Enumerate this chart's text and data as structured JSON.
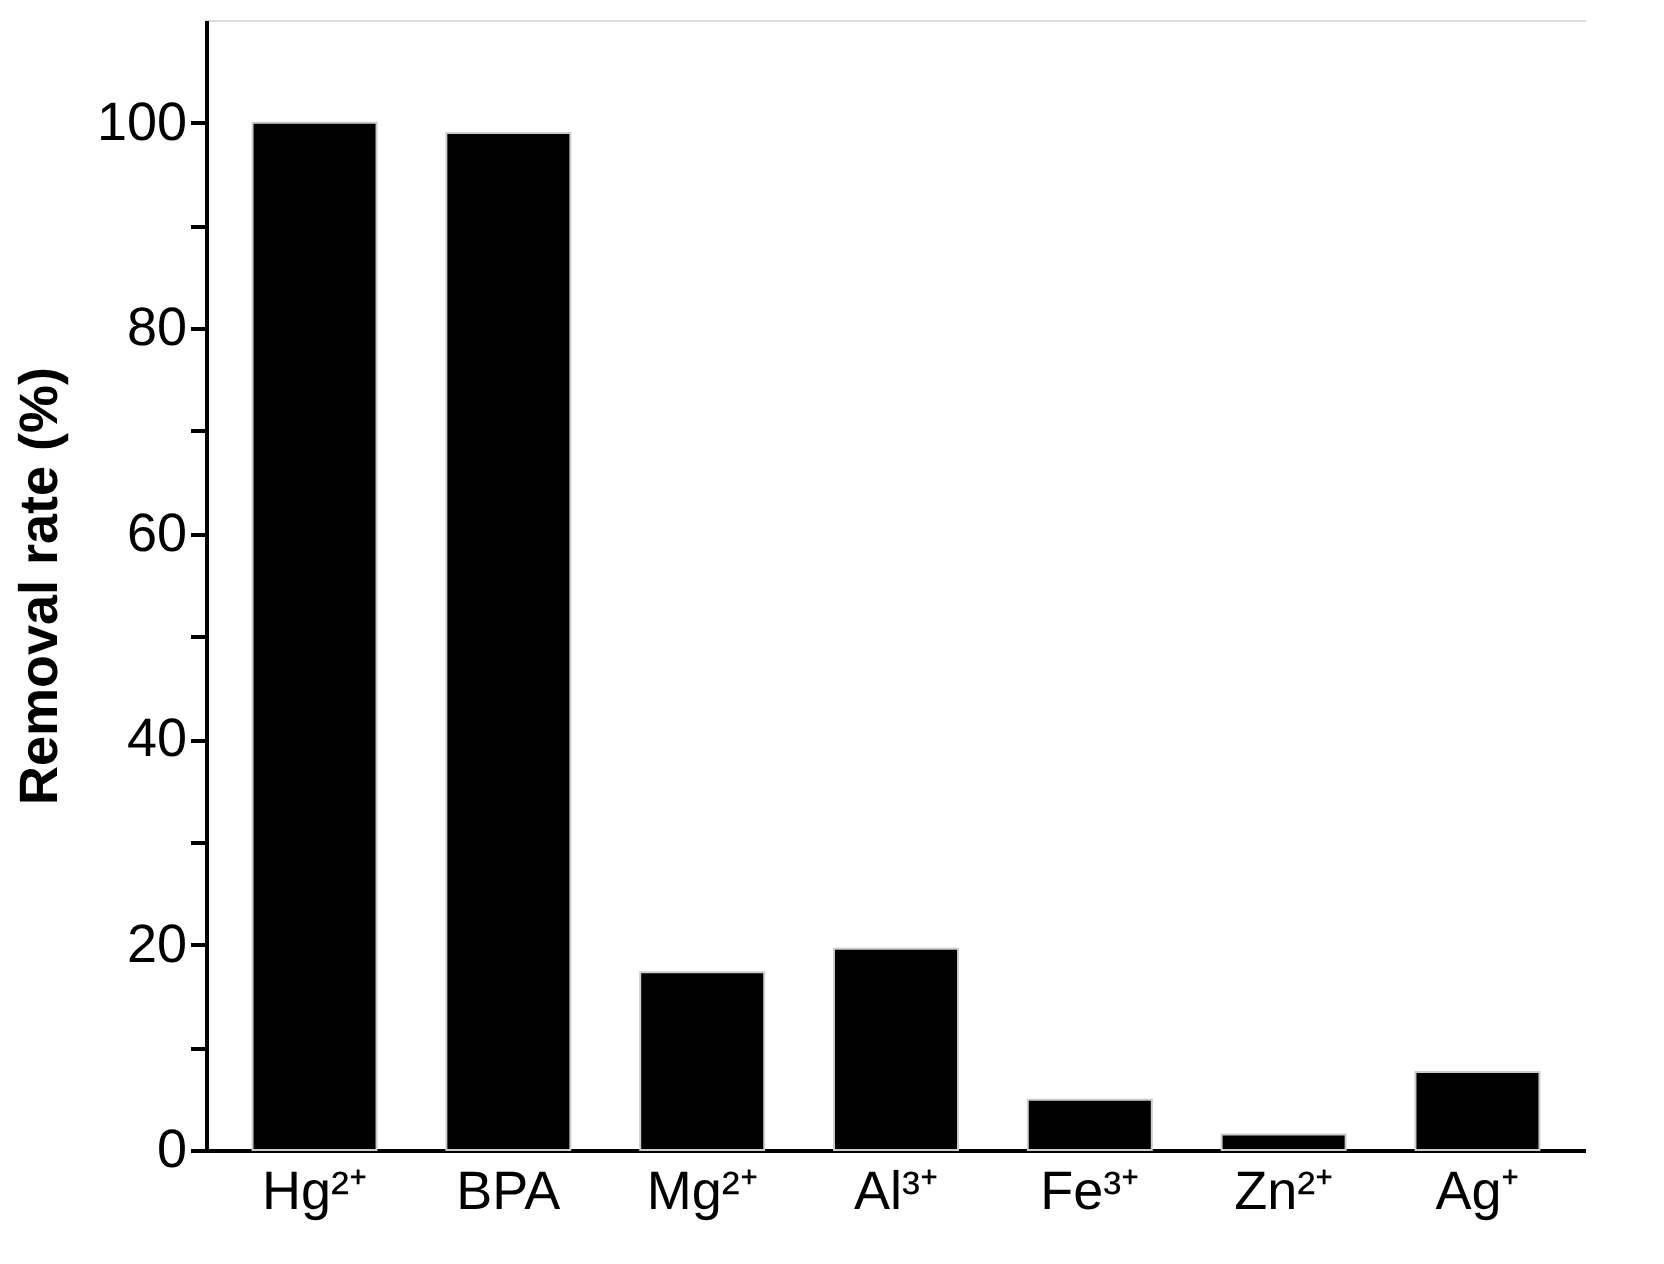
{
  "chart_data": {
    "type": "bar",
    "ylabel": "Removal rate (%)",
    "categories": [
      "Hg²⁺",
      "BPA",
      "Mg²⁺",
      "Al³⁺",
      "Fe³⁺",
      "Zn²⁺",
      "Ag⁺"
    ],
    "values": [
      100,
      99,
      17.3,
      19.6,
      4.9,
      1.5,
      7.6
    ],
    "color": "#000000",
    "ylim": [
      0,
      110
    ],
    "yticks": [
      0,
      {
        "value": 10,
        "label": null
      },
      20,
      {
        "value": 30,
        "label": null
      },
      40,
      {
        "value": 50,
        "label": null
      },
      60,
      {
        "value": 70,
        "label": null
      },
      80,
      {
        "value": 90,
        "label": null
      },
      100
    ],
    "grid": false
  }
}
